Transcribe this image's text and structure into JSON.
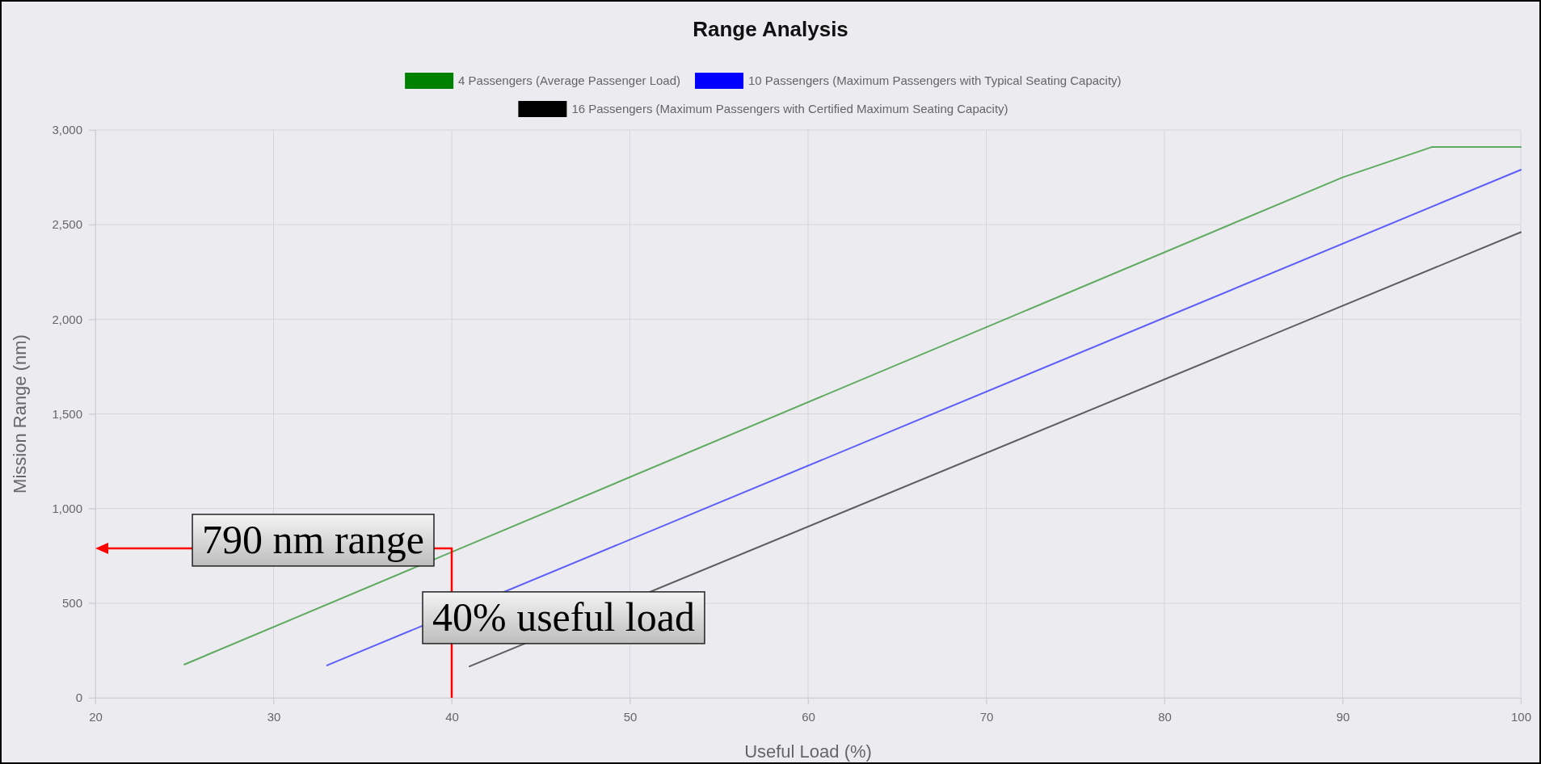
{
  "chart_data": {
    "type": "line",
    "title": "Range Analysis",
    "xlabel": "Useful Load (%)",
    "ylabel": "Mission Range (nm)",
    "xlim": [
      20,
      100
    ],
    "xticks": [
      20,
      30,
      40,
      50,
      60,
      70,
      80,
      90,
      100
    ],
    "ylim": [
      0,
      3000
    ],
    "yticks": [
      0,
      {
        "value": 500,
        "label": "500"
      },
      {
        "value": 1000,
        "label": "1,000"
      },
      {
        "value": 1500,
        "label": "1,500"
      },
      {
        "value": 2000,
        "label": "2,000"
      },
      {
        "value": 2500,
        "label": "2,500"
      },
      {
        "value": 3000,
        "label": "3,000"
      }
    ],
    "grid": true,
    "legend": "top",
    "marker": "none",
    "series": [
      {
        "name": "4 Passengers (Average Passenger Load)",
        "color": "#008000",
        "x": [
          25,
          90,
          95,
          100
        ],
        "values": [
          176,
          2750,
          2910,
          2910
        ]
      },
      {
        "name": "10 Passengers (Maximum Passengers with Typical Seating Capacity)",
        "color": "#0000ff",
        "x": [
          33,
          100
        ],
        "values": [
          171,
          2790
        ]
      },
      {
        "name": "16 Passengers (Maximum Passengers with Certified Maximum Seating Capacity)",
        "color": "#000000",
        "x": [
          41,
          100
        ],
        "values": [
          166,
          2460
        ]
      }
    ],
    "annotations": [
      {
        "text": "790 nm range",
        "x": 40,
        "y": 790
      },
      {
        "text": "40% useful load",
        "x": 40,
        "y": 790
      }
    ]
  }
}
